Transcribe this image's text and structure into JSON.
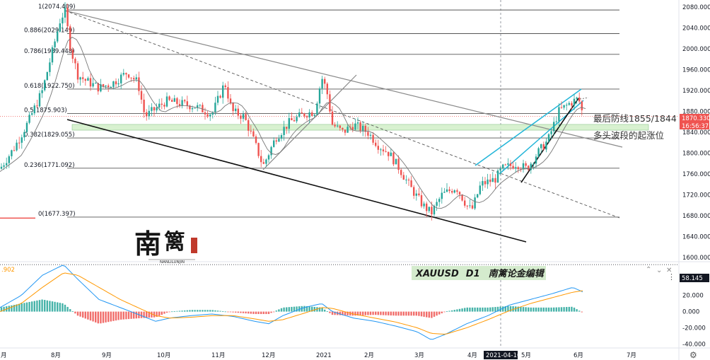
{
  "chart_data": [
    {
      "type": "candlestick",
      "symbol": "XAUUSD",
      "timeframe": "D1",
      "watermark": "南篱论金编辑",
      "y_axis": {
        "ticks": [
          "2080.000",
          "2040.000",
          "2000.000",
          "1960.000",
          "1920.000",
          "1880.000",
          "1840.000",
          "1800.000",
          "1760.000",
          "1720.000",
          "1680.000",
          "1640.000",
          "1600.000"
        ],
        "ylim": [
          1590,
          2085
        ]
      },
      "price_label": "1870.330",
      "countdown_label": "16:56:37",
      "last_price": 1870.33,
      "fib_levels": [
        {
          "label": "1(2074.409)",
          "ratio": "1",
          "value": 2074.409
        },
        {
          "label": "0.886(2029.149)",
          "ratio": "0.886",
          "value": 2029.149
        },
        {
          "label": "0.786(1989.448)",
          "ratio": "0.786",
          "value": 1989.448
        },
        {
          "label": "0.618(1922.750)",
          "ratio": "0.618",
          "value": 1922.75
        },
        {
          "label": "0.5(1875.903)",
          "ratio": "0.5",
          "value": 1875.903
        },
        {
          "label": "0.382(1829.055)",
          "ratio": "0.382",
          "value": 1829.055
        },
        {
          "label": "0.236(1771.092)",
          "ratio": "0.236",
          "value": 1771.092
        },
        {
          "label": "0(1677.397)",
          "ratio": "0",
          "value": 1677.397
        }
      ],
      "support_zone": {
        "low": 1844,
        "high": 1855,
        "color": "#d4f0cc"
      },
      "annotations": [
        "最后防线1855/1844",
        "多头波段的起涨位"
      ],
      "x_axis": {
        "labels": [
          "8月",
          "9月",
          "10月",
          "11月",
          "12月",
          "2021",
          "2月",
          "3月",
          "4月",
          "2021-04-16",
          "5月",
          "6月",
          "7月"
        ]
      },
      "colors": {
        "up": "#26a69a",
        "down": "#ef5350",
        "ma": "#777777",
        "channel_blue": "#22b5d8"
      }
    },
    {
      "type": "macd",
      "y_axis": {
        "ticks": [
          "40.000",
          "20.000",
          "0.000",
          "-20.000",
          "-40.000"
        ],
        "ylim": [
          -45,
          60
        ]
      },
      "value_label": "58.145",
      "left_value": ".902",
      "colors": {
        "macd": "#2196f3",
        "signal": "#ff9800",
        "hist_pos": "#26a69a",
        "hist_neg": "#ef5350"
      }
    }
  ]
}
